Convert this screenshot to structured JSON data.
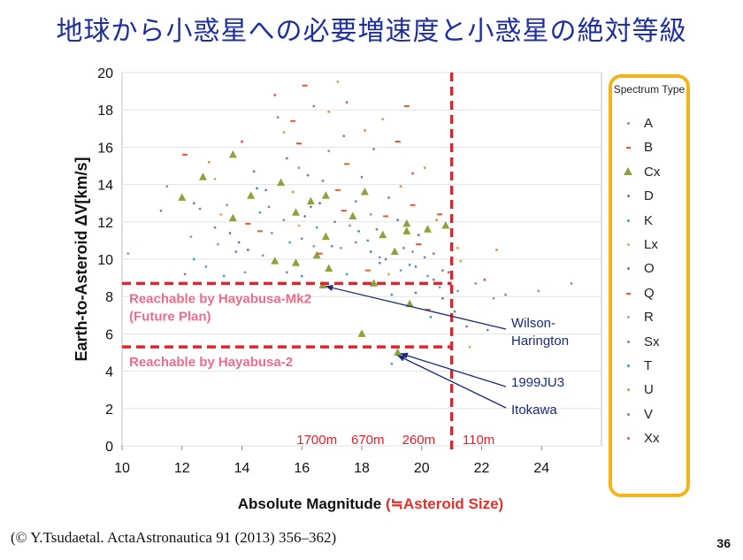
{
  "title": "地球から小惑星への必要増速度と小惑星の絶対等級",
  "citation": "(© Y.Tsudaetal. ActaAstronautica 91 (2013) 356–362)",
  "slide_number": "36",
  "chart_data": {
    "type": "scatter",
    "xlabel": "Absolute Magnitude",
    "xlabel_suffix": "(≒Asteroid Size)",
    "ylabel": "Earth-to-Asteroid ΔV[km/s]",
    "xlim": [
      10,
      26
    ],
    "ylim": [
      0,
      20
    ],
    "xticks": [
      10,
      12,
      14,
      16,
      18,
      20,
      22,
      24
    ],
    "yticks": [
      0,
      2,
      4,
      6,
      8,
      10,
      12,
      14,
      16,
      18,
      20
    ],
    "grid": "horizontal",
    "legend": {
      "title": "Spectrum Type",
      "placement": "right",
      "entries": [
        {
          "name": "A",
          "color": "#7a9ac8",
          "marker": "dot"
        },
        {
          "name": "B",
          "color": "#e4552e",
          "marker": "dash"
        },
        {
          "name": "Cx",
          "color": "#8ba33c",
          "marker": "triangle"
        },
        {
          "name": "D",
          "color": "#7f6bb0",
          "marker": "dot"
        },
        {
          "name": "K",
          "color": "#3fa6b7",
          "marker": "dot"
        },
        {
          "name": "Lx",
          "color": "#f0a04b",
          "marker": "dot"
        },
        {
          "name": "O",
          "color": "#4f7fc0",
          "marker": "dot"
        },
        {
          "name": "Q",
          "color": "#e0642a",
          "marker": "dash"
        },
        {
          "name": "R",
          "color": "#9aba5c",
          "marker": "dot"
        },
        {
          "name": "Sx",
          "color": "#8a79b8",
          "marker": "dot"
        },
        {
          "name": "T",
          "color": "#2aa0b4",
          "marker": "dot"
        },
        {
          "name": "U",
          "color": "#f08a30",
          "marker": "dot"
        },
        {
          "name": "V",
          "color": "#5f86c8",
          "marker": "dot"
        },
        {
          "name": "Xx",
          "color": "#d2576c",
          "marker": "dot"
        }
      ]
    },
    "series": [
      {
        "name": "Cx",
        "points": [
          [
            12,
            13.3
          ],
          [
            12.7,
            14.4
          ],
          [
            13.7,
            15.6
          ],
          [
            13.7,
            12.2
          ],
          [
            14.3,
            13.4
          ],
          [
            15.1,
            9.9
          ],
          [
            15.3,
            14.1
          ],
          [
            15.8,
            9.8
          ],
          [
            15.8,
            12.5
          ],
          [
            16.3,
            13.1
          ],
          [
            16.5,
            10.2
          ],
          [
            16.7,
            8.6
          ],
          [
            16.8,
            13.4
          ],
          [
            16.8,
            11.2
          ],
          [
            16.9,
            9.5
          ],
          [
            17.7,
            12.3
          ],
          [
            18,
            6
          ],
          [
            18.1,
            13.6
          ],
          [
            18.4,
            8.7
          ],
          [
            18.7,
            11.3
          ],
          [
            19.1,
            10.4
          ],
          [
            19.2,
            5
          ],
          [
            19.5,
            11.9
          ],
          [
            19.5,
            11.5
          ],
          [
            19.6,
            7.6
          ],
          [
            20.2,
            11.6
          ],
          [
            20.8,
            11.8
          ]
        ]
      },
      {
        "name": "B",
        "points": [
          [
            12.1,
            15.6
          ],
          [
            14.2,
            11.9
          ],
          [
            15.9,
            16.2
          ],
          [
            16.1,
            19.3
          ],
          [
            16.6,
            10.3
          ],
          [
            17.4,
            12.6
          ],
          [
            19.2,
            16.3
          ],
          [
            19.7,
            12.9
          ],
          [
            19.9,
            10.8
          ],
          [
            20.6,
            12.4
          ]
        ]
      },
      {
        "name": "Q",
        "points": [
          [
            14.6,
            11.5
          ],
          [
            15.7,
            17.4
          ],
          [
            17.2,
            13.7
          ],
          [
            17.5,
            15.1
          ],
          [
            18.2,
            9.4
          ],
          [
            18.8,
            12.3
          ],
          [
            19.5,
            18.2
          ],
          [
            20.2,
            7.3
          ]
        ]
      },
      {
        "name": "A",
        "points": [
          [
            10.2,
            10.3
          ],
          [
            11.5,
            13.9
          ],
          [
            12.3,
            11.2
          ],
          [
            12.8,
            9.6
          ],
          [
            13.2,
            10.8
          ],
          [
            13.5,
            12.9
          ],
          [
            14.1,
            9.3
          ],
          [
            14.7,
            10.2
          ],
          [
            15.0,
            11.4
          ],
          [
            15.4,
            12.1
          ],
          [
            15.9,
            14.9
          ],
          [
            16.4,
            10.7
          ],
          [
            16.9,
            15.8
          ],
          [
            17.3,
            10.6
          ],
          [
            17.6,
            11.8
          ],
          [
            18.3,
            12.4
          ],
          [
            18.6,
            10.1
          ],
          [
            19.3,
            9.4
          ],
          [
            19.7,
            10.4
          ],
          [
            20.2,
            9.1
          ],
          [
            20.6,
            8.5
          ],
          [
            21.2,
            8.3
          ],
          [
            21.8,
            8.7
          ],
          [
            22.4,
            7.9
          ],
          [
            23.9,
            8.3
          ],
          [
            25,
            8.7
          ]
        ]
      },
      {
        "name": "Sx",
        "points": [
          [
            11.3,
            12.6
          ],
          [
            12.1,
            9.2
          ],
          [
            12.6,
            12.7
          ],
          [
            13.1,
            11.7
          ],
          [
            13.8,
            10.4
          ],
          [
            14.4,
            14.7
          ],
          [
            14.9,
            12.8
          ],
          [
            15.2,
            17.6
          ],
          [
            15.5,
            9.3
          ],
          [
            16.0,
            11.1
          ],
          [
            16.4,
            18.2
          ],
          [
            16.7,
            14.2
          ],
          [
            17.1,
            12.0
          ],
          [
            17.4,
            16.6
          ],
          [
            17.8,
            10.9
          ],
          [
            18.0,
            14.4
          ],
          [
            18.5,
            11.6
          ],
          [
            18.9,
            13.3
          ],
          [
            19.4,
            10.6
          ],
          [
            19.8,
            9.6
          ],
          [
            20.1,
            10.1
          ],
          [
            20.4,
            8.9
          ],
          [
            20.7,
            9.4
          ],
          [
            21.1,
            7.2
          ],
          [
            21.5,
            6.4
          ],
          [
            22.2,
            6.2
          ],
          [
            22.8,
            8.1
          ]
        ]
      },
      {
        "name": "K",
        "points": [
          [
            13.4,
            9.1
          ],
          [
            14.6,
            12.5
          ],
          [
            15.6,
            10.9
          ],
          [
            16.5,
            11.7
          ],
          [
            17.5,
            9.2
          ],
          [
            18.2,
            11.0
          ],
          [
            19.0,
            4.4
          ],
          [
            19.6,
            9.7
          ]
        ]
      },
      {
        "name": "V",
        "points": [
          [
            12.4,
            13.0
          ],
          [
            13.6,
            11.4
          ],
          [
            14.8,
            13.7
          ],
          [
            15.5,
            15.4
          ],
          [
            16.3,
            12.8
          ],
          [
            17.0,
            10.7
          ],
          [
            17.8,
            13.1
          ],
          [
            18.6,
            9.8
          ],
          [
            19.2,
            12.1
          ],
          [
            19.9,
            11.3
          ]
        ]
      },
      {
        "name": "Xx",
        "points": [
          [
            14.0,
            16.3
          ],
          [
            15.1,
            18.8
          ],
          [
            16.2,
            14.5
          ],
          [
            17.5,
            18.4
          ],
          [
            18.4,
            15.9
          ],
          [
            19.7,
            14.6
          ],
          [
            20.4,
            10.3
          ],
          [
            20.9,
            9.3
          ],
          [
            22.1,
            8.9
          ]
        ]
      },
      {
        "name": "U",
        "points": [
          [
            12.9,
            15.2
          ],
          [
            15.7,
            13.6
          ],
          [
            16.9,
            17.9
          ],
          [
            18.1,
            16.9
          ],
          [
            19.3,
            13.9
          ],
          [
            20.5,
            12.1
          ],
          [
            21.2,
            10.6
          ],
          [
            22.5,
            10.5
          ]
        ]
      },
      {
        "name": "R",
        "points": [
          [
            13.1,
            14.3
          ],
          [
            15.4,
            16.8
          ],
          [
            17.2,
            19.5
          ],
          [
            18.7,
            17.5
          ],
          [
            20.1,
            14.9
          ],
          [
            21.3,
            9.9
          ]
        ]
      },
      {
        "name": "T",
        "points": [
          [
            12.4,
            10.0
          ],
          [
            14.5,
            13.8
          ],
          [
            16.0,
            9.1
          ],
          [
            17.9,
            11.5
          ],
          [
            19.0,
            8.1
          ],
          [
            20.3,
            6.9
          ]
        ]
      },
      {
        "name": "O",
        "points": [
          [
            13.9,
            10.9
          ],
          [
            16.1,
            12.3
          ],
          [
            18.3,
            10.4
          ],
          [
            19.8,
            8.2
          ]
        ]
      },
      {
        "name": "D",
        "points": [
          [
            14.2,
            10.5
          ],
          [
            16.6,
            13.0
          ],
          [
            18.8,
            10.0
          ],
          [
            20.7,
            7.9
          ]
        ]
      },
      {
        "name": "Lx",
        "points": [
          [
            13.3,
            12.4
          ],
          [
            15.9,
            11.8
          ],
          [
            18.9,
            9.2
          ],
          [
            21.6,
            5.3
          ],
          [
            23.2,
            6.8
          ]
        ]
      }
    ],
    "reference_lines": [
      {
        "orientation": "horizontal",
        "y": 8.7,
        "x_to": 21,
        "label": "Reachable by Hayabusa-Mk2",
        "sublabel": "(Future Plan)"
      },
      {
        "orientation": "horizontal",
        "y": 5.3,
        "x_to": 21,
        "label": "Reachable by Hayabusa-2"
      },
      {
        "orientation": "vertical",
        "x": 21
      }
    ],
    "size_labels": [
      {
        "x": 16.5,
        "text": "1700m"
      },
      {
        "x": 18.2,
        "text": "670m"
      },
      {
        "x": 19.9,
        "text": "260m"
      },
      {
        "x": 21.9,
        "text": "110m"
      }
    ],
    "annotations": [
      {
        "text": "Wilson-",
        "text2": "Harington",
        "point": [
          16.7,
          8.6
        ]
      },
      {
        "text": "1999JU3",
        "point": [
          19.2,
          5
        ]
      },
      {
        "text": "Itokawa",
        "point": [
          19.1,
          4.9
        ]
      }
    ]
  }
}
